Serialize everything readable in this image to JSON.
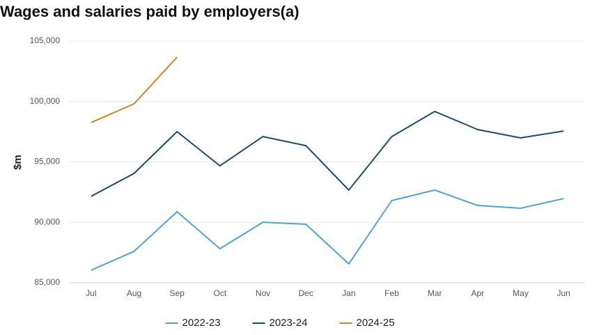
{
  "chart_data": {
    "type": "line",
    "title": "Wages and salaries paid by employers(a)",
    "ylabel": "$m",
    "categories": [
      "Jul",
      "Aug",
      "Sep",
      "Oct",
      "Nov",
      "Dec",
      "Jan",
      "Feb",
      "Mar",
      "Apr",
      "May",
      "Jun"
    ],
    "series": [
      {
        "name": "2022-23",
        "color": "#4ea3d0",
        "values": [
          86040,
          87600,
          90880,
          87820,
          90010,
          89840,
          86560,
          91800,
          92670,
          91400,
          91170,
          91970
        ]
      },
      {
        "name": "2023-24",
        "color": "#1b4a6a",
        "values": [
          92150,
          94050,
          97510,
          94680,
          97100,
          96350,
          92670,
          97100,
          99180,
          97680,
          96990,
          97560
        ]
      },
      {
        "name": "2024-25",
        "color": "#d4821e",
        "values": [
          98260,
          99810,
          103670,
          null,
          null,
          null,
          null,
          null,
          null,
          null,
          null,
          null
        ]
      }
    ],
    "ylim": [
      85000,
      105000
    ],
    "yticks": [
      {
        "value": 85000,
        "label": "85,000"
      },
      {
        "value": 90000,
        "label": "90,000"
      },
      {
        "value": 95000,
        "label": "95,000"
      },
      {
        "value": 100000,
        "label": "100,000"
      },
      {
        "value": 105000,
        "label": "105,000"
      }
    ],
    "grid": true,
    "legend": "bottom"
  }
}
